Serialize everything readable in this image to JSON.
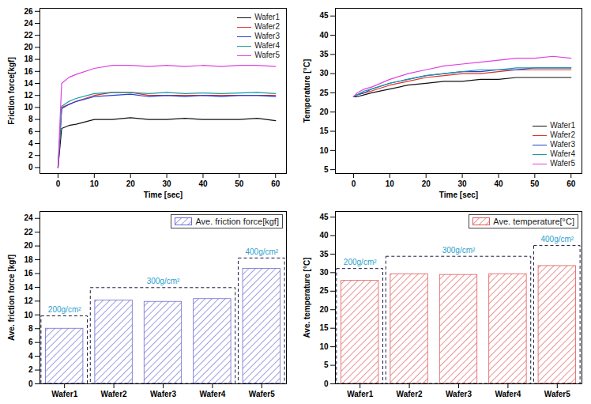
{
  "chart_data": [
    {
      "type": "line",
      "x_label": "Time [sec]",
      "y_label": "Friction force[kgf]",
      "x": [
        0,
        1,
        3,
        5,
        10,
        15,
        20,
        25,
        30,
        35,
        40,
        45,
        50,
        55,
        60
      ],
      "series": [
        {
          "name": "Wafer1",
          "color": "#111111",
          "values": [
            0,
            6.5,
            7,
            7.2,
            8,
            8,
            8.3,
            8,
            8,
            8.2,
            8,
            8,
            8,
            8.2,
            7.8
          ]
        },
        {
          "name": "Wafer2",
          "color": "#e0302a",
          "values": [
            0,
            10,
            10.5,
            11,
            12,
            12.5,
            12.5,
            12,
            12,
            12,
            12,
            12,
            12,
            12,
            12
          ]
        },
        {
          "name": "Wafer3",
          "color": "#2b3fd6",
          "values": [
            0,
            9.8,
            10.5,
            11,
            11.8,
            12,
            12.2,
            11.8,
            12,
            11.8,
            12,
            11.8,
            12,
            12,
            11.8
          ]
        },
        {
          "name": "Wafer4",
          "color": "#1a9a9a",
          "values": [
            0,
            10.2,
            11,
            11.5,
            12.3,
            12.5,
            12.5,
            12.3,
            12.5,
            12.3,
            12.4,
            12.3,
            12.4,
            12.5,
            12.3
          ]
        },
        {
          "name": "Wafer5",
          "color": "#e040e0",
          "values": [
            0,
            14,
            15,
            15.5,
            16.5,
            17,
            17,
            16.8,
            17,
            16.8,
            17,
            16.8,
            17,
            17,
            16.8
          ]
        }
      ],
      "xlim": [
        -5,
        63
      ],
      "xticks": [
        0,
        10,
        20,
        30,
        40,
        50,
        60
      ],
      "ylim": [
        -1,
        26.5
      ],
      "yticks": [
        0,
        2,
        4,
        6,
        8,
        10,
        12,
        14,
        16,
        18,
        20,
        22,
        24,
        26
      ],
      "legend": "top-right",
      "grid": false
    },
    {
      "type": "line",
      "x_label": "Time [sec]",
      "y_label": "Temperature [°C]",
      "x": [
        0,
        1,
        3,
        5,
        10,
        15,
        20,
        25,
        30,
        35,
        40,
        45,
        50,
        55,
        60
      ],
      "series": [
        {
          "name": "Wafer1",
          "color": "#111111",
          "values": [
            24,
            24,
            24.5,
            25,
            26,
            27,
            27.5,
            28,
            28,
            28.5,
            28.5,
            29,
            29,
            29,
            29
          ]
        },
        {
          "name": "Wafer2",
          "color": "#e0302a",
          "values": [
            24,
            24.5,
            25,
            25.5,
            27,
            28,
            29,
            29.5,
            30,
            30,
            30.5,
            31,
            31,
            31,
            31
          ]
        },
        {
          "name": "Wafer3",
          "color": "#2b3fd6",
          "values": [
            24,
            24.5,
            25,
            26,
            27.5,
            28.5,
            29.5,
            30,
            30.5,
            30.5,
            31,
            31,
            31.5,
            31.5,
            31.5
          ]
        },
        {
          "name": "Wafer4",
          "color": "#1a9a9a",
          "values": [
            24,
            24.5,
            25.5,
            26,
            27.5,
            28.5,
            29.5,
            30,
            30.5,
            31,
            31,
            31.5,
            31.5,
            31.5,
            31.5
          ]
        },
        {
          "name": "Wafer5",
          "color": "#e040e0",
          "values": [
            24,
            25,
            26,
            26.5,
            28.5,
            30,
            31,
            32,
            32.5,
            33,
            33.5,
            34,
            34,
            34.5,
            34
          ]
        }
      ],
      "xlim": [
        -5,
        63
      ],
      "xticks": [
        0,
        10,
        20,
        30,
        40,
        50,
        60
      ],
      "ylim": [
        4,
        47
      ],
      "yticks": [
        5,
        10,
        15,
        20,
        25,
        30,
        35,
        40,
        45
      ],
      "legend": "bottom-right",
      "grid": false
    },
    {
      "type": "bar",
      "y_label": "Ave. friction force [kgf]",
      "categories": [
        "Wafer1",
        "Wafer2",
        "Wafer3",
        "Wafer4",
        "Wafer5"
      ],
      "series": [
        {
          "name": "Ave. friction force[kgf]",
          "color": "#6b6bd0",
          "values": [
            8,
            12.1,
            11.9,
            12.3,
            16.7
          ]
        }
      ],
      "groups": [
        {
          "label": "200g/cm²",
          "categories": [
            "Wafer1"
          ],
          "top": 9.8
        },
        {
          "label": "300g/cm²",
          "categories": [
            "Wafer2",
            "Wafer3",
            "Wafer4"
          ],
          "top": 13.9
        },
        {
          "label": "400g/cm²",
          "categories": [
            "Wafer5"
          ],
          "top": 18.2
        }
      ],
      "ylim": [
        0,
        25
      ],
      "yticks": [
        0,
        2,
        4,
        6,
        8,
        10,
        12,
        14,
        16,
        18,
        20,
        22,
        24
      ],
      "legend": "top-right",
      "grid": false
    },
    {
      "type": "bar",
      "y_label": "Ave. temperature [°C]",
      "categories": [
        "Wafer1",
        "Wafer2",
        "Wafer3",
        "Wafer4",
        "Wafer5"
      ],
      "series": [
        {
          "name": "Ave. temperature[°C]",
          "color": "#e05a5a",
          "values": [
            27.8,
            29.6,
            29.4,
            29.6,
            31.8
          ]
        }
      ],
      "groups": [
        {
          "label": "200g/cm²",
          "categories": [
            "Wafer1"
          ],
          "top": 31
        },
        {
          "label": "300g/cm²",
          "categories": [
            "Wafer2",
            "Wafer3",
            "Wafer4"
          ],
          "top": 34.3
        },
        {
          "label": "400g/cm²",
          "categories": [
            "Wafer5"
          ],
          "top": 37.2
        }
      ],
      "ylim": [
        0,
        46.5
      ],
      "yticks": [
        0,
        5,
        10,
        15,
        20,
        25,
        30,
        35,
        40,
        45
      ],
      "legend": "top-right",
      "grid": false
    }
  ]
}
